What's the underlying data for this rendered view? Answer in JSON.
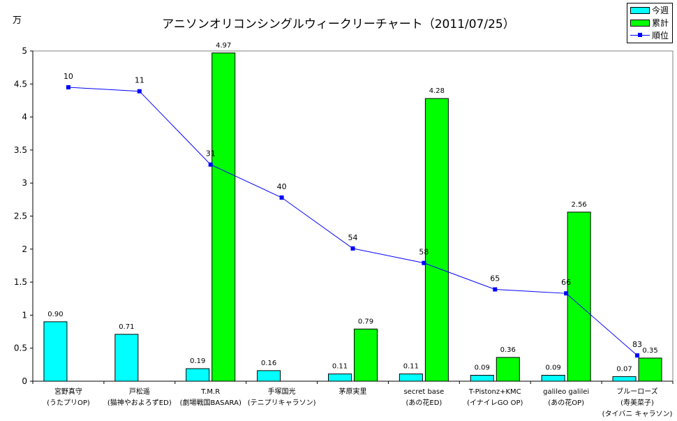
{
  "unit": "万",
  "chart_data": {
    "type": "bar",
    "title": "アニソンオリコンシングルウィークリーチャート（2011/07/25）",
    "xlabel": "",
    "ylabel": "万",
    "ylim": [
      0,
      5
    ],
    "yticks": [
      "0",
      "0.5",
      "1",
      "1.5",
      "2",
      "2.5",
      "3",
      "3.5",
      "4",
      "4.5",
      "5"
    ],
    "grid": false,
    "legend_position": "top-right",
    "categories": [
      [
        "宮野真守",
        "(うたプリOP)"
      ],
      [
        "戸松遥",
        "(猫神やおよろずED)"
      ],
      [
        "T.M.R",
        "(劇場戦国BASARA)"
      ],
      [
        "手塚国光",
        "(テニプリキャラソン)"
      ],
      [
        "茅原実里",
        ""
      ],
      [
        "secret base",
        "(あの花ED)"
      ],
      [
        "T-Pistonz+KMC",
        "(イナイレGO OP)"
      ],
      [
        "galileo galilei",
        "(あの花OP)"
      ],
      [
        "ブルーローズ",
        "(寿美菜子)",
        "(タイバニ キャラソン)"
      ]
    ],
    "series": [
      {
        "name": "今週",
        "kind": "bar",
        "color": "#00ffff",
        "values": [
          0.9,
          0.71,
          0.19,
          0.16,
          0.11,
          0.11,
          0.09,
          0.09,
          0.07
        ],
        "labels": [
          "0.90",
          "0.71",
          "0.19",
          "0.16",
          "0.11",
          "0.11",
          "0.09",
          "0.09",
          "0.07"
        ]
      },
      {
        "name": "累計",
        "kind": "bar",
        "color": "#00ff00",
        "values": [
          null,
          null,
          4.97,
          null,
          0.79,
          4.28,
          0.36,
          2.56,
          0.35
        ],
        "labels": [
          "",
          "",
          "4.97",
          "",
          "0.79",
          "4.28",
          "0.36",
          "2.56",
          "0.35"
        ]
      },
      {
        "name": "順位",
        "kind": "line",
        "color": "#0000ff",
        "values": [
          4.45,
          4.39,
          3.28,
          2.78,
          2.01,
          1.79,
          1.39,
          1.33,
          0.39
        ],
        "labels": [
          "10",
          "11",
          "31",
          "40",
          "54",
          "58",
          "65",
          "66",
          "83"
        ]
      }
    ]
  }
}
